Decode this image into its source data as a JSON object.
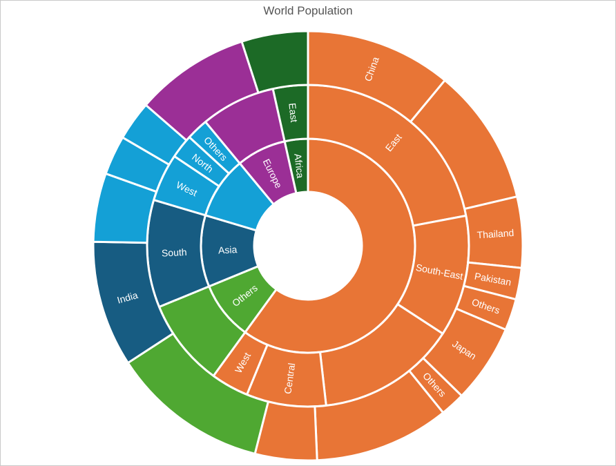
{
  "chart_data": {
    "type": "sunburst",
    "title": "World Population",
    "rings": [
      [
        {
          "id": "asia_all",
          "label": "",
          "value": 60.0,
          "color": "#e87536"
        },
        {
          "id": "others_top",
          "label": "Others",
          "value": 8.8,
          "color": "#4fa832"
        },
        {
          "id": "asia",
          "label": "Asia",
          "value": 10.8,
          "color": "#175c82"
        },
        {
          "id": "blue_all",
          "label": "",
          "value": 9.4,
          "color": "#14a0d6"
        },
        {
          "id": "europe",
          "label": "Europe",
          "value": 7.5,
          "color": "#9b2f96"
        },
        {
          "id": "africa",
          "label": "Africa",
          "value": 3.5,
          "color": "#1c6a26"
        }
      ],
      [
        {
          "id": "east",
          "label": "East",
          "value": 22.0,
          "color": "#e87536"
        },
        {
          "id": "southeast",
          "label": "South-East",
          "value": 12.2,
          "color": "#e87536"
        },
        {
          "id": "seg_mid",
          "label": "",
          "value": 14.0,
          "color": "#e87536"
        },
        {
          "id": "central",
          "label": "Central",
          "value": 8.0,
          "color": "#e87536"
        },
        {
          "id": "west_o",
          "label": "West",
          "value": 3.8,
          "color": "#e87536"
        },
        {
          "id": "others_mid",
          "label": "",
          "value": 8.8,
          "color": "#4fa832"
        },
        {
          "id": "south",
          "label": "South",
          "value": 10.8,
          "color": "#175c82"
        },
        {
          "id": "west_b",
          "label": "West",
          "value": 4.8,
          "color": "#14a0d6"
        },
        {
          "id": "north",
          "label": "North",
          "value": 2.4,
          "color": "#14a0d6"
        },
        {
          "id": "others_b",
          "label": "Others",
          "value": 2.2,
          "color": "#14a0d6"
        },
        {
          "id": "europe_mid",
          "label": "",
          "value": 7.5,
          "color": "#9b2f96"
        },
        {
          "id": "east_a",
          "label": "East",
          "value": 3.5,
          "color": "#1c6a26"
        }
      ],
      [
        {
          "id": "china",
          "label": "China",
          "value": 13.0,
          "color": "#e87536"
        },
        {
          "id": "o_seg2",
          "label": "",
          "value": 12.2,
          "color": "#e87536"
        },
        {
          "id": "thailand",
          "label": "Thailand",
          "value": 6.3,
          "color": "#e87536"
        },
        {
          "id": "pakistan",
          "label": "Pakistan",
          "value": 2.8,
          "color": "#e87536"
        },
        {
          "id": "others_p",
          "label": "Others",
          "value": 2.8,
          "color": "#e87536"
        },
        {
          "id": "japan",
          "label": "Japan",
          "value": 7.0,
          "color": "#e87536"
        },
        {
          "id": "others_j",
          "label": "Others",
          "value": 2.2,
          "color": "#e87536"
        },
        {
          "id": "o_seg8",
          "label": "",
          "value": 12.0,
          "color": "#e87536"
        },
        {
          "id": "o_seg9",
          "label": "",
          "value": 5.5,
          "color": "#e87536"
        },
        {
          "id": "g_seg",
          "label": "",
          "value": 14.0,
          "color": "#4fa832"
        },
        {
          "id": "india",
          "label": "India",
          "value": 11.2,
          "color": "#175c82"
        },
        {
          "id": "b_seg1",
          "label": "",
          "value": 6.1,
          "color": "#14a0d6"
        },
        {
          "id": "b_seg2",
          "label": "",
          "value": 3.5,
          "color": "#14a0d6"
        },
        {
          "id": "b_seg3",
          "label": "",
          "value": 3.5,
          "color": "#14a0d6"
        },
        {
          "id": "p_seg",
          "label": "",
          "value": 10.2,
          "color": "#9b2f96"
        },
        {
          "id": "g2_seg",
          "label": "",
          "value": 5.9,
          "color": "#1c6a26"
        }
      ]
    ]
  }
}
